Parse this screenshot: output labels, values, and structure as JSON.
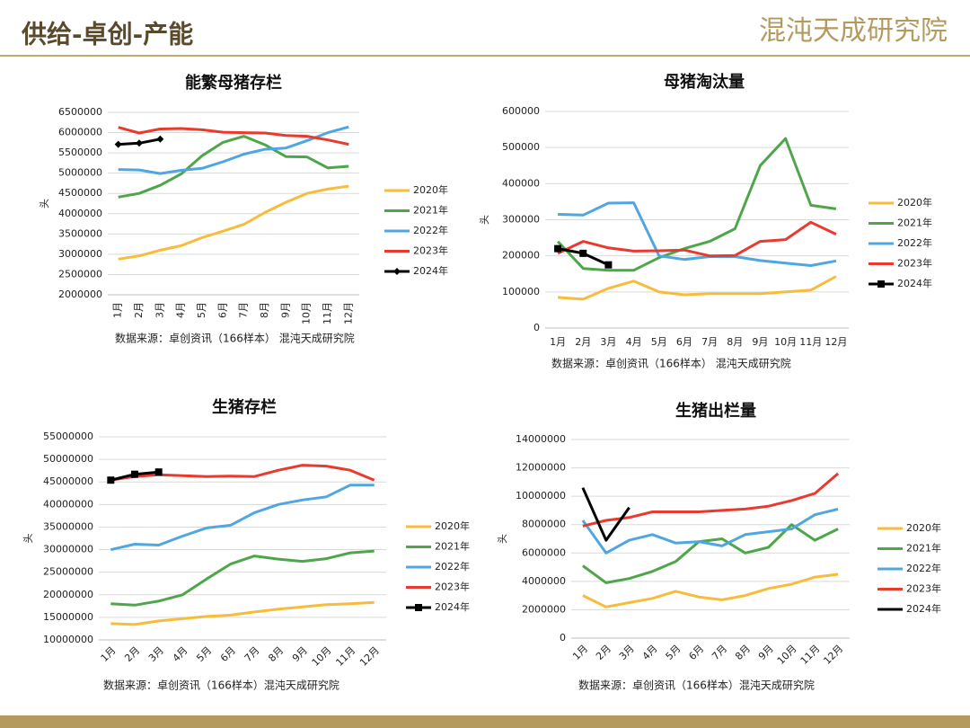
{
  "header": {
    "title": "供给-卓创-产能",
    "logo": "混沌天成研究院"
  },
  "chart_data": [
    {
      "type": "line",
      "title": "能繁母猪存栏",
      "y_label": "头",
      "source": "数据来源：卓创资讯（166样本） 混沌天成研究院",
      "categories": [
        "1月",
        "2月",
        "3月",
        "4月",
        "5月",
        "6月",
        "7月",
        "8月",
        "9月",
        "10月",
        "11月",
        "12月"
      ],
      "ylim": [
        2000000,
        6500000
      ],
      "yticks": [
        2000000,
        2500000,
        3000000,
        3500000,
        4000000,
        4500000,
        5000000,
        5500000,
        6000000,
        6500000
      ],
      "grid": true,
      "legend": "right",
      "series": [
        {
          "name": "2020年",
          "color": "#f8bc3c",
          "values": [
            2880000,
            2960000,
            3100000,
            3210000,
            3410000,
            3570000,
            3740000,
            4030000,
            4280000,
            4500000,
            4610000,
            4680000
          ]
        },
        {
          "name": "2021年",
          "color": "#4ea64a",
          "values": [
            4410000,
            4500000,
            4700000,
            4980000,
            5430000,
            5760000,
            5910000,
            5700000,
            5410000,
            5400000,
            5130000,
            5170000
          ]
        },
        {
          "name": "2022年",
          "color": "#4fa6e0",
          "values": [
            5090000,
            5080000,
            4990000,
            5070000,
            5120000,
            5280000,
            5470000,
            5590000,
            5620000,
            5800000,
            6000000,
            6140000
          ]
        },
        {
          "name": "2023年",
          "color": "#e83a2e",
          "values": [
            6130000,
            5990000,
            6090000,
            6100000,
            6070000,
            6010000,
            6000000,
            5990000,
            5930000,
            5910000,
            5820000,
            5710000
          ]
        },
        {
          "name": "2024年",
          "color": "#000000",
          "marker": "diamond",
          "values": [
            5710000,
            5740000,
            5840000,
            null,
            null,
            null,
            null,
            null,
            null,
            null,
            null,
            null
          ]
        }
      ]
    },
    {
      "type": "line",
      "title": "母猪淘汰量",
      "y_label": "头",
      "source": "数据来源：卓创资讯（166样本） 混沌天成研究院",
      "categories": [
        "1月",
        "2月",
        "3月",
        "4月",
        "5月",
        "6月",
        "7月",
        "8月",
        "9月",
        "10月",
        "11月",
        "12月"
      ],
      "ylim": [
        0,
        600000
      ],
      "yticks": [
        0,
        100000,
        200000,
        300000,
        400000,
        500000,
        600000
      ],
      "grid": true,
      "legend": "right",
      "series": [
        {
          "name": "2020年",
          "color": "#f8bc3c",
          "values": [
            85000,
            80000,
            110000,
            130000,
            100000,
            92000,
            95000,
            95000,
            95000,
            100000,
            105000,
            143000
          ]
        },
        {
          "name": "2021年",
          "color": "#4ea64a",
          "values": [
            240000,
            165000,
            160000,
            160000,
            195000,
            220000,
            240000,
            275000,
            450000,
            525000,
            340000,
            330000
          ]
        },
        {
          "name": "2022年",
          "color": "#4fa6e0",
          "values": [
            315000,
            313000,
            346000,
            347000,
            200000,
            190000,
            198000,
            198000,
            187000,
            180000,
            173000,
            186000
          ]
        },
        {
          "name": "2023年",
          "color": "#e83a2e",
          "values": [
            207000,
            240000,
            222000,
            213000,
            214000,
            216000,
            200000,
            201000,
            240000,
            245000,
            293000,
            260000
          ]
        },
        {
          "name": "2024年",
          "color": "#000000",
          "marker": "square",
          "values": [
            220000,
            207000,
            175000,
            null,
            null,
            null,
            null,
            null,
            null,
            null,
            null,
            null
          ]
        }
      ]
    },
    {
      "type": "line",
      "title": "生猪存栏",
      "y_label": "头",
      "source": "数据来源：卓创资讯（166样本）混沌天成研究院",
      "categories": [
        "1月",
        "2月",
        "3月",
        "4月",
        "5月",
        "6月",
        "7月",
        "8月",
        "9月",
        "10月",
        "11月",
        "12月"
      ],
      "ylim": [
        10000000,
        55000000
      ],
      "yticks": [
        10000000,
        15000000,
        20000000,
        25000000,
        30000000,
        35000000,
        40000000,
        45000000,
        50000000,
        55000000
      ],
      "grid": true,
      "legend": "right",
      "series": [
        {
          "name": "2020年",
          "color": "#f8bc3c",
          "values": [
            13600000,
            13400000,
            14200000,
            14700000,
            15200000,
            15500000,
            16200000,
            16800000,
            17300000,
            17800000,
            18000000,
            18300000
          ]
        },
        {
          "name": "2021年",
          "color": "#4ea64a",
          "values": [
            18000000,
            17700000,
            18600000,
            20000000,
            23500000,
            26800000,
            28600000,
            27900000,
            27400000,
            28000000,
            29300000,
            29700000
          ]
        },
        {
          "name": "2022年",
          "color": "#4fa6e0",
          "values": [
            30000000,
            31200000,
            31000000,
            33000000,
            34800000,
            35400000,
            38200000,
            40000000,
            41000000,
            41700000,
            44300000,
            44300000
          ]
        },
        {
          "name": "2023年",
          "color": "#e83a2e",
          "values": [
            45400000,
            46200000,
            46600000,
            46400000,
            46200000,
            46300000,
            46200000,
            47600000,
            48700000,
            48500000,
            47600000,
            45400000
          ]
        },
        {
          "name": "2024年",
          "color": "#000000",
          "marker": "square",
          "values": [
            45400000,
            46700000,
            47200000,
            null,
            null,
            null,
            null,
            null,
            null,
            null,
            null,
            null
          ]
        }
      ]
    },
    {
      "type": "line",
      "title": "生猪出栏量",
      "y_label": "头",
      "source": "数据来源：卓创资讯（166样本）混沌天成研究院",
      "categories": [
        "1月",
        "2月",
        "3月",
        "4月",
        "5月",
        "6月",
        "7月",
        "8月",
        "9月",
        "10月",
        "11月",
        "12月"
      ],
      "ylim": [
        0,
        14000000
      ],
      "yticks": [
        0,
        2000000,
        4000000,
        6000000,
        8000000,
        10000000,
        12000000,
        14000000
      ],
      "grid": true,
      "legend": "right",
      "series": [
        {
          "name": "2020年",
          "color": "#f8bc3c",
          "values": [
            3000000,
            2200000,
            2500000,
            2800000,
            3300000,
            2900000,
            2700000,
            3000000,
            3500000,
            3800000,
            4300000,
            4500000
          ]
        },
        {
          "name": "2021年",
          "color": "#4ea64a",
          "values": [
            5100000,
            3900000,
            4200000,
            4700000,
            5400000,
            6800000,
            7000000,
            6000000,
            6400000,
            8000000,
            6900000,
            7700000
          ]
        },
        {
          "name": "2022年",
          "color": "#4fa6e0",
          "values": [
            8300000,
            6000000,
            6900000,
            7300000,
            6700000,
            6800000,
            6500000,
            7300000,
            7500000,
            7700000,
            8700000,
            9100000
          ]
        },
        {
          "name": "2023年",
          "color": "#e83a2e",
          "values": [
            7900000,
            8300000,
            8500000,
            8900000,
            8900000,
            8900000,
            9000000,
            9100000,
            9300000,
            9700000,
            10200000,
            11600000
          ]
        },
        {
          "name": "2024年",
          "color": "#000000",
          "values": [
            10600000,
            6900000,
            9200000,
            null,
            null,
            null,
            null,
            null,
            null,
            null,
            null,
            null
          ]
        }
      ]
    }
  ]
}
